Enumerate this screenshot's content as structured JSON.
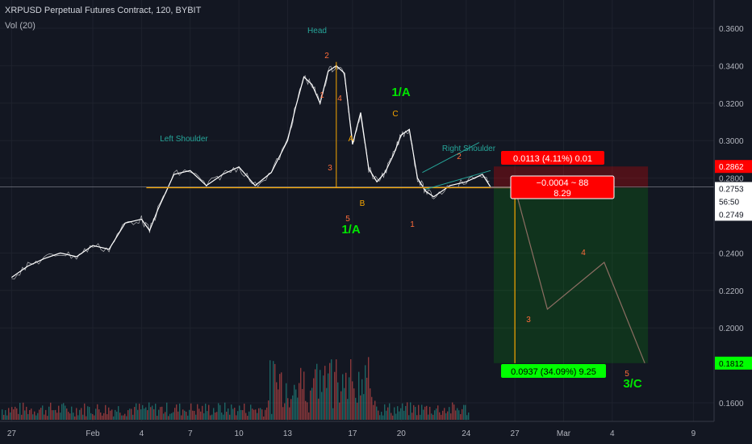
{
  "header": {
    "title": "XRPUSD Perpetual Futures Contract, 120, BYBIT",
    "indicator": "Vol (20)"
  },
  "price_axis": {
    "ticks": [
      "0.3600",
      "0.3400",
      "0.3200",
      "0.3000",
      "0.2800",
      "0.2400",
      "0.2200",
      "0.2000",
      "0.1600"
    ],
    "labels": {
      "stop": "0.2862",
      "last": "0.2753",
      "countdown": "56:50",
      "entry": "0.2749",
      "target": "0.1812"
    }
  },
  "time_axis": {
    "ticks": [
      "27",
      "Feb",
      "4",
      "7",
      "10",
      "13",
      "17",
      "20",
      "24",
      "27",
      "Mar",
      "4",
      "9"
    ]
  },
  "annotations": {
    "head": "Head",
    "left_shoulder": "Left Shoulder",
    "right_shoulder": "Right Shoulder",
    "wave_labels": [
      "2",
      "1",
      "4",
      "3",
      "5",
      "A",
      "B",
      "C",
      "1",
      "2",
      "4",
      "3",
      "5"
    ],
    "big_1a_top": "1/A",
    "big_1a_bottom": "1/A",
    "big_3c": "3/C"
  },
  "position": {
    "stop_box": "0.0113 (4.11%) 0.01",
    "mid_box_line1": "−0.0004 ~ 88",
    "mid_box_line2": "8.29",
    "target_box": "0.0937 (34.09%) 9.25"
  },
  "colors": {
    "background": "#131722",
    "price": "#ffffff",
    "neckline": "#f7a600",
    "wave_orange": "#ff6d3a",
    "teal": "#26a69a",
    "green_label": "#00e600",
    "stop_red": "#ff0000",
    "target_green": "#00ff00",
    "vol_up": "#26a69a",
    "vol_down": "#ef5350"
  },
  "chart_data": {
    "type": "line",
    "title": "XRPUSD Perpetual Futures Contract, 120, BYBIT",
    "ylim": [
      0.155,
      0.37
    ],
    "x_category_ticks": [
      "27",
      "Feb",
      "4",
      "7",
      "10",
      "13",
      "17",
      "20",
      "24",
      "27",
      "Mar",
      "4",
      "9"
    ],
    "series": [
      {
        "values_day_price": [
          [
            -5.0,
            0.227
          ],
          [
            -4.0,
            0.233
          ],
          [
            -3.0,
            0.237
          ],
          [
            -2.0,
            0.24
          ],
          [
            -1.0,
            0.238
          ],
          [
            0.0,
            0.244
          ],
          [
            1.0,
            0.242
          ],
          [
            2.0,
            0.256
          ],
          [
            3.0,
            0.258
          ],
          [
            3.5,
            0.252
          ],
          [
            4.0,
            0.263
          ],
          [
            5.0,
            0.282
          ],
          [
            6.0,
            0.284
          ],
          [
            7.0,
            0.276
          ],
          [
            8.0,
            0.282
          ],
          [
            9.0,
            0.286
          ],
          [
            10.0,
            0.276
          ],
          [
            11.0,
            0.283
          ],
          [
            12.0,
            0.3
          ],
          [
            12.5,
            0.318
          ],
          [
            13.0,
            0.334
          ],
          [
            13.5,
            0.33
          ],
          [
            14.0,
            0.32
          ],
          [
            14.5,
            0.337
          ],
          [
            15.0,
            0.34
          ],
          [
            15.5,
            0.336
          ],
          [
            16.0,
            0.298
          ],
          [
            16.5,
            0.315
          ],
          [
            17.0,
            0.285
          ],
          [
            17.5,
            0.278
          ],
          [
            18.0,
            0.283
          ],
          [
            18.5,
            0.292
          ],
          [
            19.0,
            0.303
          ],
          [
            19.5,
            0.306
          ],
          [
            20.0,
            0.28
          ],
          [
            20.5,
            0.273
          ],
          [
            21.0,
            0.27
          ],
          [
            22.0,
            0.276
          ],
          [
            23.0,
            0.278
          ],
          [
            24.0,
            0.282
          ],
          [
            24.5,
            0.2753
          ]
        ]
      }
    ],
    "projection_day_price": [
      [
        24.5,
        0.2749
      ],
      [
        26.0,
        0.2749
      ],
      [
        28.0,
        0.21
      ],
      [
        31.5,
        0.235
      ],
      [
        34.0,
        0.1812
      ]
    ],
    "neckline_price": 0.2749,
    "volume_note": "Vol (20) histogram, ~0–? (no volume axis labels shown)"
  }
}
